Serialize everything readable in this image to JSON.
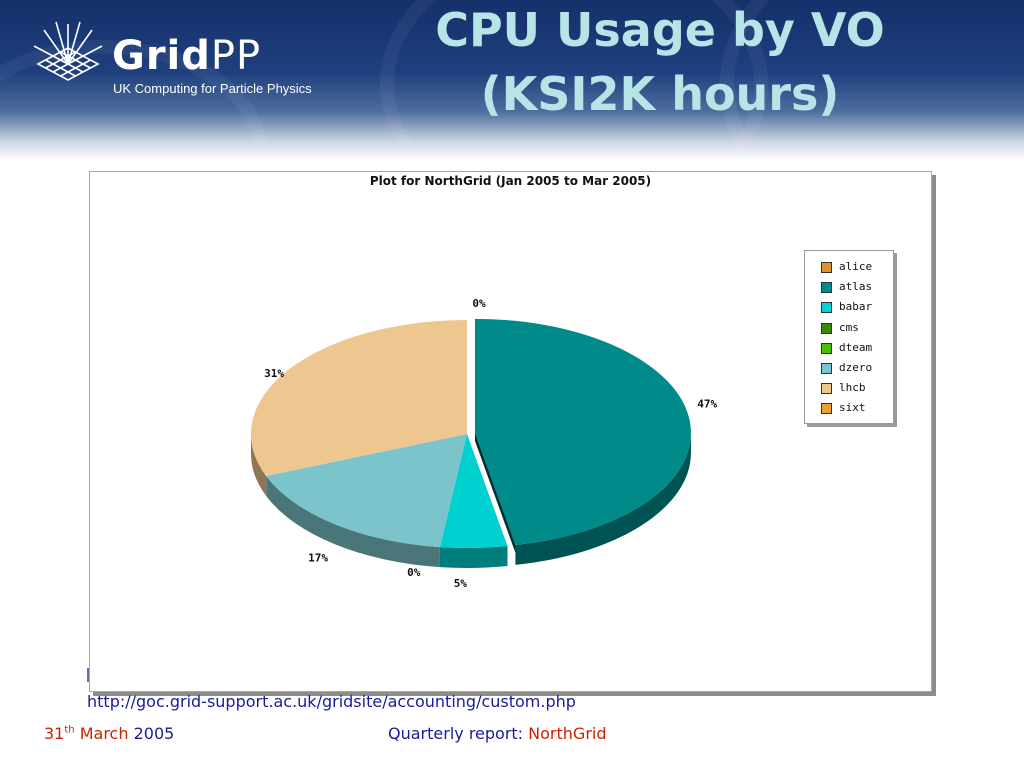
{
  "header": {
    "logo_text_bold": "Grid",
    "logo_text_light": "PP",
    "logo_tagline": "UK Computing for Particle Physics",
    "slide_title_line1": "CPU Usage by VO",
    "slide_title_line2": "(KSI2K hours)"
  },
  "chart_data": {
    "type": "pie",
    "title": "Plot for NorthGrid (Jan 2005 to Mar 2005)",
    "categories": [
      "alice",
      "atlas",
      "babar",
      "cms",
      "dteam",
      "dzero",
      "lhcb",
      "sixt"
    ],
    "values": [
      0,
      47,
      5,
      0,
      0,
      17,
      31,
      0
    ],
    "colors": [
      "#d9942a",
      "#008a8a",
      "#00d0d0",
      "#3a8a00",
      "#44c000",
      "#7cc4cc",
      "#eec690",
      "#eba030"
    ],
    "slice_labels": [
      "",
      "47%",
      "5%",
      "",
      "0%",
      "17%",
      "31%",
      "0%"
    ],
    "legend_position": "right"
  },
  "footer": {
    "url": "http://goc.grid-support.ac.uk/gridsite/accounting/custom.php",
    "date_day": "31",
    "date_suffix": "th",
    "date_month": "March",
    "date_year": "2005",
    "report_prefix": "Quarterly report:",
    "report_site": "NorthGrid"
  }
}
